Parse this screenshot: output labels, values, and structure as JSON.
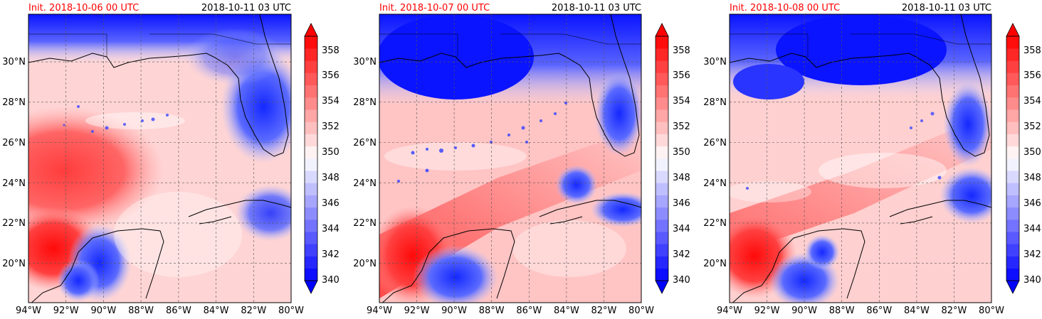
{
  "colors": {
    "init_label": "#ff0000",
    "valid_label": "#000000",
    "colormap_low": "#0000ff",
    "colormap_mid": "#ffffff",
    "colormap_high": "#ff0000",
    "grid": "#555555",
    "coast": "#000000"
  },
  "chart_data": [
    {
      "type": "heatmap",
      "title_left": "Init. 2018-10-06 00 UTC",
      "title_right": "2018-10-11 03 UTC",
      "x_ticks": [
        "94°W",
        "92°W",
        "90°W",
        "88°W",
        "86°W",
        "84°W",
        "82°W",
        "80°W"
      ],
      "y_ticks": [
        "20°N",
        "22°N",
        "24°N",
        "26°N",
        "28°N",
        "30°N"
      ],
      "xlim": [
        -94,
        -80
      ],
      "ylim": [
        18.2,
        32
      ],
      "colorbar": {
        "range": [
          340,
          360
        ],
        "ticks": [
          "358",
          "356",
          "354",
          "352",
          "350",
          "348",
          "346",
          "344",
          "342",
          "340"
        ],
        "extend": "both"
      },
      "grid": true
    },
    {
      "type": "heatmap",
      "title_left": "Init. 2018-10-07 00 UTC",
      "title_right": "2018-10-11 03 UTC",
      "x_ticks": [
        "94°W",
        "92°W",
        "90°W",
        "88°W",
        "86°W",
        "84°W",
        "82°W",
        "80°W"
      ],
      "y_ticks": [
        "20°N",
        "22°N",
        "24°N",
        "26°N",
        "28°N",
        "30°N"
      ],
      "xlim": [
        -94,
        -80
      ],
      "ylim": [
        18.2,
        32
      ],
      "colorbar": {
        "range": [
          340,
          360
        ],
        "ticks": [
          "358",
          "356",
          "354",
          "352",
          "350",
          "348",
          "346",
          "344",
          "342",
          "340"
        ],
        "extend": "both"
      },
      "grid": true
    },
    {
      "type": "heatmap",
      "title_left": "Init. 2018-10-08 00 UTC",
      "title_right": "2018-10-11 03 UTC",
      "x_ticks": [
        "94°W",
        "92°W",
        "90°W",
        "88°W",
        "86°W",
        "84°W",
        "82°W",
        "80°W"
      ],
      "y_ticks": [
        "20°N",
        "22°N",
        "24°N",
        "26°N",
        "28°N",
        "30°N"
      ],
      "xlim": [
        -94,
        -80
      ],
      "ylim": [
        18.2,
        32
      ],
      "colorbar": {
        "range": [
          340,
          360
        ],
        "ticks": [
          "358",
          "356",
          "354",
          "352",
          "350",
          "348",
          "346",
          "344",
          "342",
          "340"
        ],
        "extend": "both"
      },
      "grid": true
    }
  ]
}
